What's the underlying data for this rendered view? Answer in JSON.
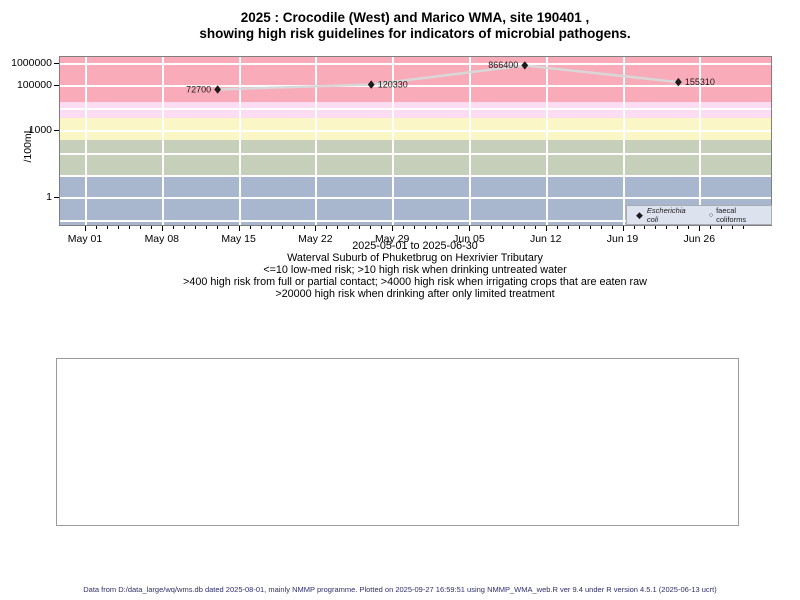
{
  "title": {
    "line1": "2025 : Crocodile (West) and Marico WMA, site 190401 ,",
    "line2": "showing high risk guidelines for indicators of microbial pathogens."
  },
  "captions": {
    "date_range": "2025-05-01 to 2025-06-30",
    "location": "Waterval Suburb of Phuketbrug on Hexrivier Tributary",
    "guideline1": "<=10 low-med risk; >10 high risk when drinking untreated water",
    "guideline2": ">400 high risk from full or partial contact; >4000 high risk when irrigating crops that are eaten raw",
    "guideline3": ">20000 high risk when drinking after only limited treatment"
  },
  "footer": "Data from D:/data_large/wq/wms.db dated 2025-08-01, mainly NMMP programme. Plotted on 2025-09-27 16:59:51 using NMMP_WMA_web.R ver 9.4 under R version 4.5.1 (2025-06-13 ucrt)",
  "chart_data": {
    "type": "line",
    "title": "2025 : Crocodile (West) and Marico WMA, site 190401, showing high risk guidelines for indicators of microbial pathogens.",
    "ylabel": "/100mL",
    "y_scale": "log10",
    "x_range": [
      "2025-05-01",
      "2025-06-30"
    ],
    "y_ticks": [
      {
        "value": 1000000,
        "label": "1000000"
      },
      {
        "value": 100000,
        "label": "100000"
      },
      {
        "value": 1000,
        "label": "1000"
      },
      {
        "value": 1,
        "label": "1"
      }
    ],
    "x_ticks": [
      {
        "date": "2025-05-01",
        "label": "May 01"
      },
      {
        "date": "2025-05-08",
        "label": "May 08"
      },
      {
        "date": "2025-05-15",
        "label": "May 15"
      },
      {
        "date": "2025-05-22",
        "label": "May 22"
      },
      {
        "date": "2025-05-29",
        "label": "May 29"
      },
      {
        "date": "2025-06-05",
        "label": "Jun 05"
      },
      {
        "date": "2025-06-12",
        "label": "Jun 12"
      },
      {
        "date": "2025-06-19",
        "label": "Jun 19"
      },
      {
        "date": "2025-06-26",
        "label": "Jun 26"
      }
    ],
    "gridline_decades": [
      1000000,
      100000,
      10000,
      1000,
      100,
      10,
      1,
      0.1
    ],
    "risk_bands": [
      {
        "range": ">20000 high risk when drinking after only limited treatment",
        "from": 20000,
        "to": null,
        "color": "#f9abba"
      },
      {
        "range": "4000-20000 high risk when irrigating crops eaten raw",
        "from": 4000,
        "to": 20000,
        "color": "#fcdcf2"
      },
      {
        "range": "400-4000 high risk from full or partial contact",
        "from": 400,
        "to": 4000,
        "color": "#faf6c6"
      },
      {
        "range": "10-400 high risk when drinking untreated water",
        "from": 10,
        "to": 400,
        "color": "#c5cfba"
      },
      {
        "range": "<=10 low-med risk",
        "from": null,
        "to": 10,
        "color": "#a8b7ce"
      }
    ],
    "series": [
      {
        "name": "Escherichia coli",
        "marker": "filled-diamond",
        "marker_color": "#1b1b1b",
        "line_color": "#d8d8d8",
        "points": [
          {
            "date": "2025-05-13",
            "value": 72700,
            "label": "72700",
            "label_side": "left"
          },
          {
            "date": "2025-05-27",
            "value": 120330,
            "label": "120330",
            "label_side": "right"
          },
          {
            "date": "2025-06-10",
            "value": 866400,
            "label": "866400",
            "label_side": "left"
          },
          {
            "date": "2025-06-24",
            "value": 155310,
            "label": "155310",
            "label_side": "right"
          }
        ]
      },
      {
        "name": "faecal coliforms",
        "marker": "open-circle",
        "points": []
      }
    ]
  }
}
